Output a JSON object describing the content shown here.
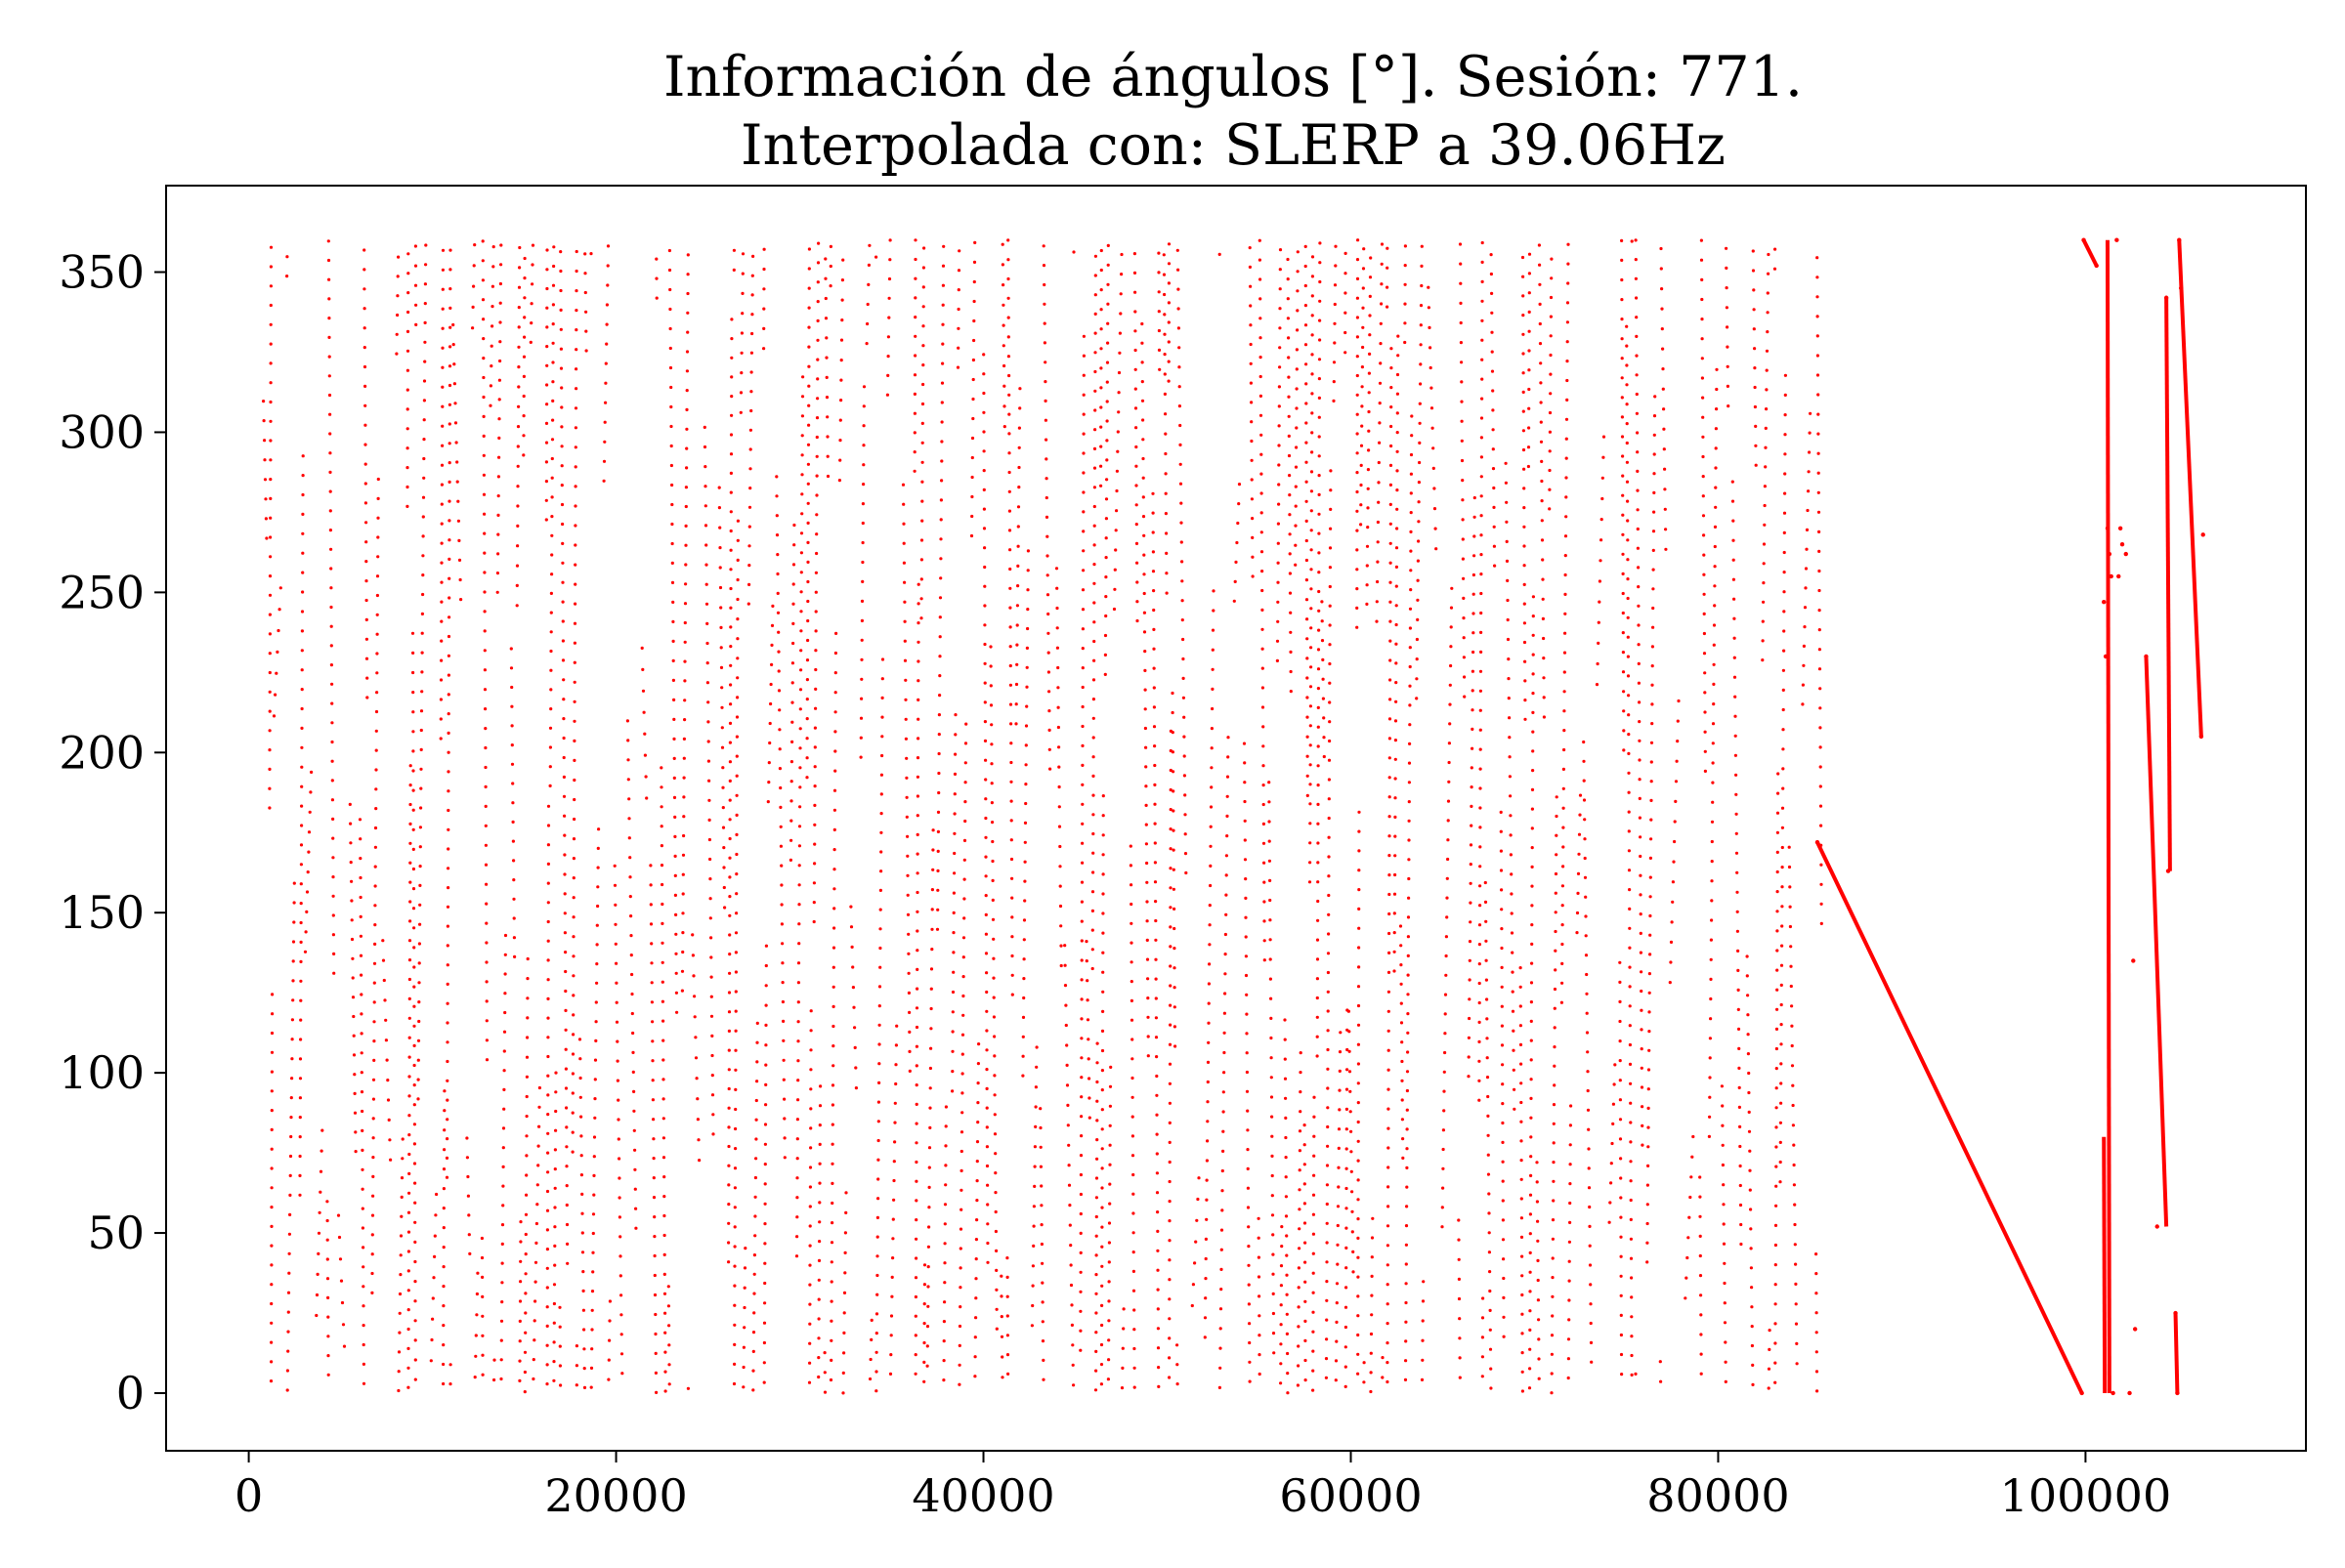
{
  "chart_data": {
    "type": "scatter",
    "title_lines": [
      "Información de ángulos [°]. Sesión: 771.",
      "Interpolada con: SLERP a 39.06Hz"
    ],
    "xlabel": "",
    "ylabel": "",
    "xlim": [
      -4500,
      112000
    ],
    "ylim": [
      -18,
      377
    ],
    "x_ticks": [
      0,
      20000,
      40000,
      60000,
      80000,
      100000
    ],
    "x_tick_labels": [
      "0",
      "20000",
      "40000",
      "60000",
      "80000",
      "100000"
    ],
    "y_ticks": [
      0,
      50,
      100,
      150,
      200,
      250,
      300,
      350
    ],
    "y_tick_labels": [
      "0",
      "50",
      "100",
      "150",
      "200",
      "250",
      "300",
      "350"
    ],
    "grid": false,
    "legend": "none",
    "marker_color": "#ff0000",
    "dense_region": {
      "x_start": 800,
      "x_end": 85500,
      "y_min": 0,
      "y_max": 360
    },
    "series": [
      {
        "points_note": "",
        "x": [
          85400,
          99800,
          99900,
          100600,
          101000,
          101100,
          101200,
          101300,
          101400,
          101500,
          101700,
          101800,
          101900,
          102000,
          102200,
          102400,
          102600,
          102700,
          103300,
          103900,
          104400,
          104500,
          104900,
          105000,
          105100,
          105200,
          106300,
          106400
        ],
        "y": [
          172,
          0,
          360,
          352,
          247,
          230,
          270,
          262,
          255,
          0,
          360,
          255,
          270,
          265,
          262,
          0,
          135,
          20,
          230,
          52,
          342,
          163,
          25,
          0,
          360,
          345,
          205,
          268
        ]
      }
    ],
    "line_segments": [
      {
        "x": [
          85400,
          99800
        ],
        "y": [
          172,
          0
        ]
      },
      {
        "x": [
          99900,
          100600
        ],
        "y": [
          360,
          352
        ]
      },
      {
        "x": [
          101000,
          101050
        ],
        "y": [
          80,
          0
        ]
      },
      {
        "x": [
          101200,
          101300
        ],
        "y": [
          360,
          0
        ]
      },
      {
        "x": [
          103300,
          104400
        ],
        "y": [
          230,
          52
        ]
      },
      {
        "x": [
          104400,
          104600
        ],
        "y": [
          342,
          163
        ]
      },
      {
        "x": [
          104900,
          105000
        ],
        "y": [
          25,
          0
        ]
      },
      {
        "x": [
          105100,
          106300
        ],
        "y": [
          360,
          205
        ]
      }
    ]
  }
}
